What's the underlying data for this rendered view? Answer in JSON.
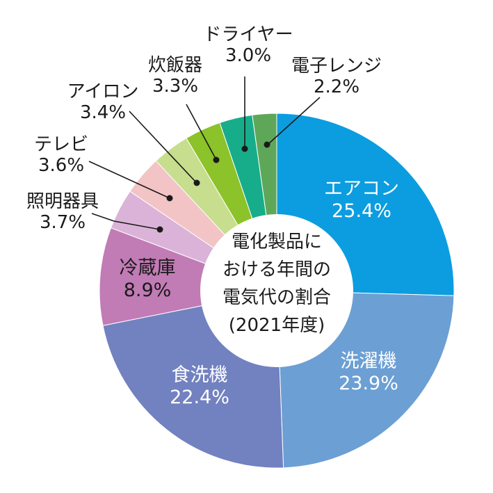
{
  "chart_data": {
    "type": "pie",
    "center_label_lines": [
      "電化製品に",
      "ける年間の",
      "電気代の割合",
      "(2021年度)"
    ],
    "center_label_prefix": "お",
    "slices": [
      {
        "name": "エアコン",
        "value": 25.4,
        "label": "25.4%",
        "color": "#0b9de0"
      },
      {
        "name": "洗濯機",
        "value": 23.9,
        "label": "23.9%",
        "color": "#6c9fd4"
      },
      {
        "name": "食洗機",
        "value": 22.4,
        "label": "22.4%",
        "color": "#7281c0"
      },
      {
        "name": "冷蔵庫",
        "value": 8.9,
        "label": "8.9%",
        "color": "#c17bb5"
      },
      {
        "name": "照明器具",
        "value": 3.7,
        "label": "3.7%",
        "color": "#dbb3d8"
      },
      {
        "name": "テレビ",
        "value": 3.6,
        "label": "3.6%",
        "color": "#f2c4c6"
      },
      {
        "name": "アイロン",
        "value": 3.4,
        "label": "3.4%",
        "color": "#c7de8e"
      },
      {
        "name": "炊飯器",
        "value": 3.3,
        "label": "3.3%",
        "color": "#8cc22a"
      },
      {
        "name": "ドライヤー",
        "value": 3.0,
        "label": "3.0%",
        "color": "#18ad8a"
      },
      {
        "name": "電子レンジ",
        "value": 2.2,
        "label": "2.2%",
        "color": "#5fa758"
      }
    ]
  }
}
